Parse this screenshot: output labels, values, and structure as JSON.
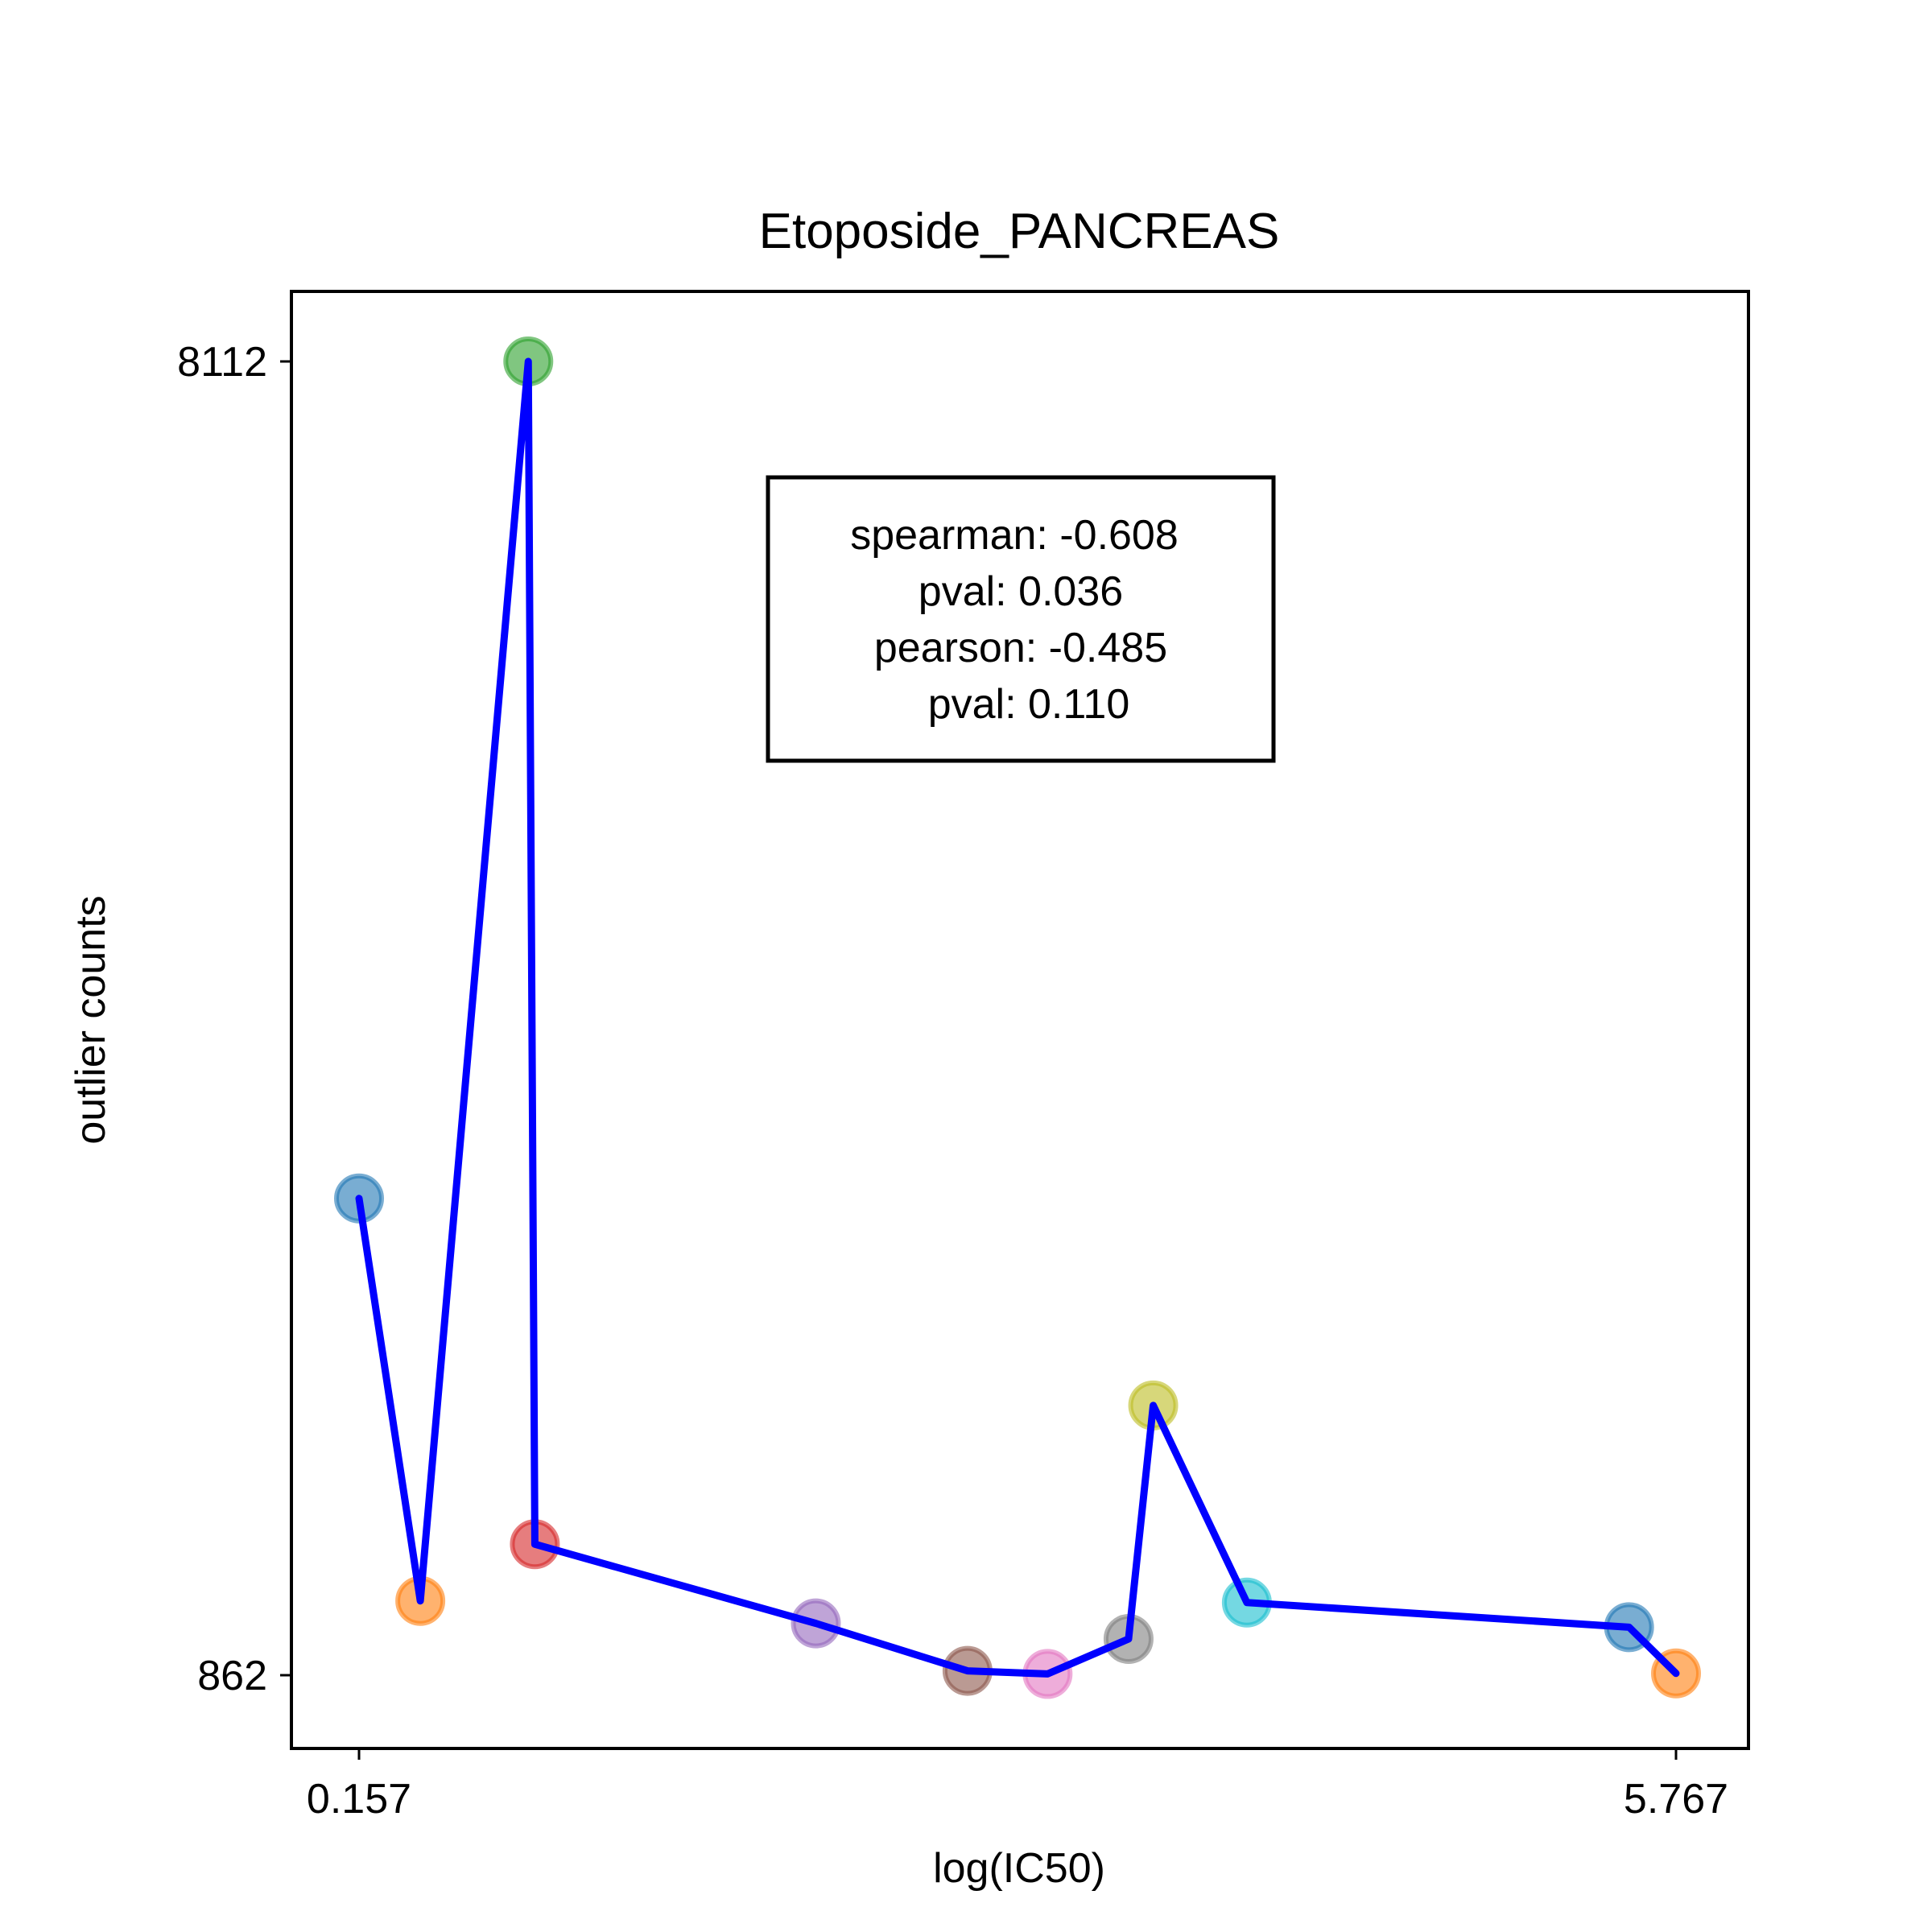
{
  "chart_data": {
    "type": "scatter",
    "title": "Etoposide_PANCREAS",
    "xlabel": "log(IC50)",
    "ylabel": "outlier counts",
    "xlim": [
      0.157,
      5.767
    ],
    "ylim": [
      862,
      8112
    ],
    "x_ticks": [
      "0.157",
      "5.767"
    ],
    "y_ticks": [
      "8112",
      "862"
    ],
    "grid": false,
    "line_color": "#0000ff",
    "points": [
      {
        "x": 0.157,
        "y": 3493,
        "color": "#1f77b4"
      },
      {
        "x": 0.418,
        "y": 1272,
        "color": "#ff7f0e"
      },
      {
        "x": 0.878,
        "y": 8112,
        "color": "#2ca02c"
      },
      {
        "x": 0.906,
        "y": 1585,
        "color": "#d62728"
      },
      {
        "x": 2.103,
        "y": 1148,
        "color": "#9467bd"
      },
      {
        "x": 2.749,
        "y": 886,
        "color": "#8c564b"
      },
      {
        "x": 3.09,
        "y": 869,
        "color": "#e377c2"
      },
      {
        "x": 3.435,
        "y": 1062,
        "color": "#7f7f7f"
      },
      {
        "x": 3.54,
        "y": 2351,
        "color": "#bcbd22"
      },
      {
        "x": 3.939,
        "y": 1263,
        "color": "#17becf"
      },
      {
        "x": 5.567,
        "y": 1127,
        "color": "#1f77b4"
      },
      {
        "x": 5.767,
        "y": 872,
        "color": "#ff7f0e"
      }
    ],
    "annotation": {
      "lines": [
        "spearman: -0.608",
        "pval: 0.036",
        "pearson: -0.485",
        "pval: 0.110"
      ],
      "spearman": -0.608,
      "spearman_pval": 0.036,
      "pearson": -0.485,
      "pearson_pval": 0.11
    }
  }
}
